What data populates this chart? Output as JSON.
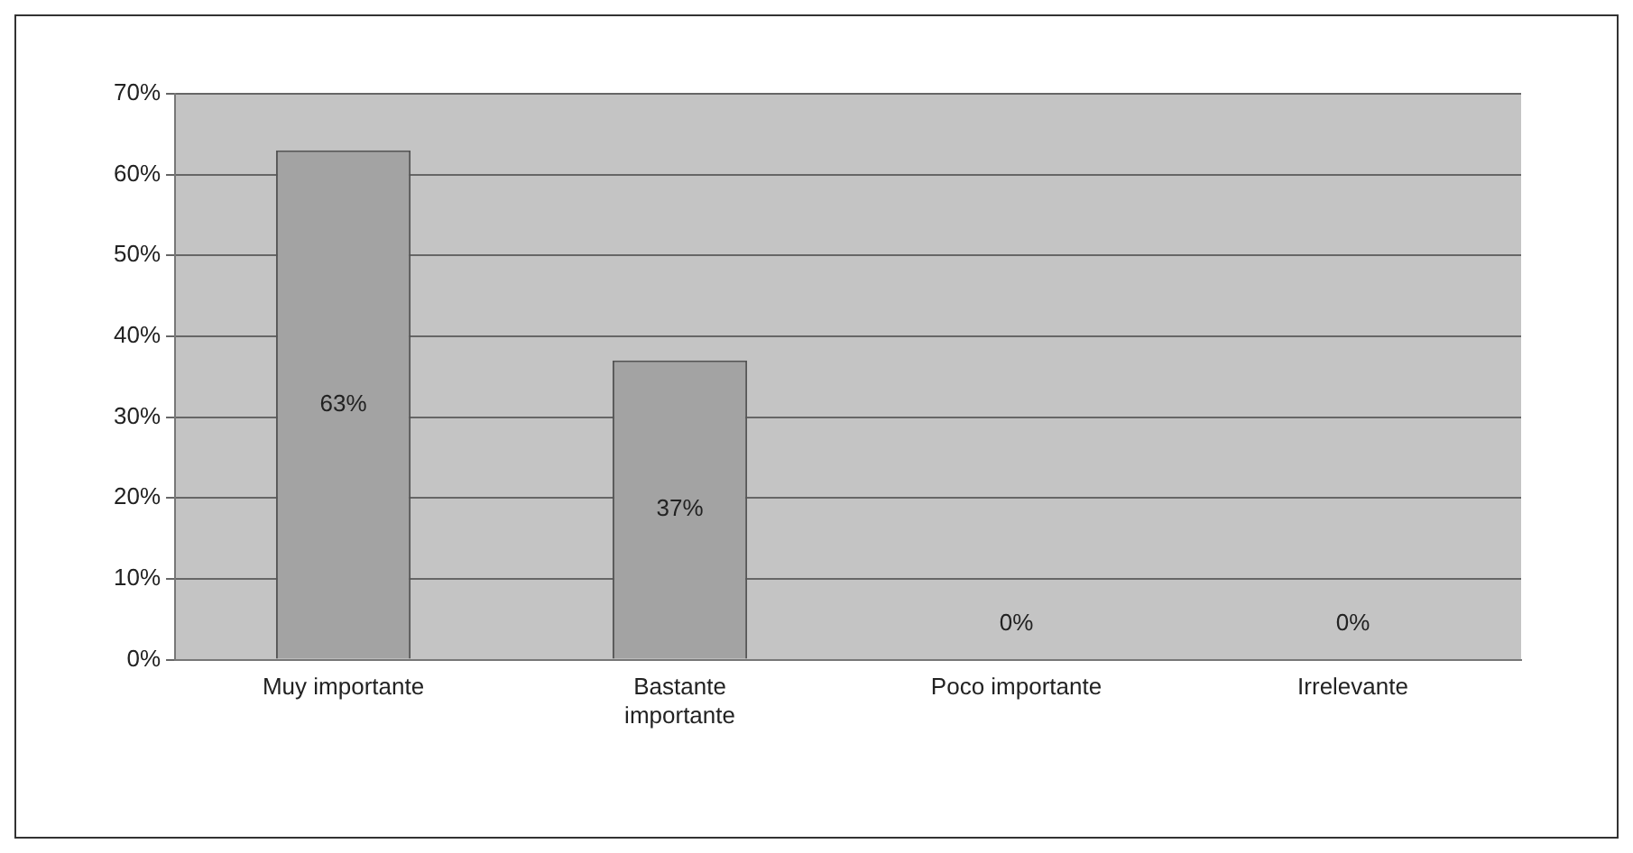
{
  "chart_data": {
    "type": "bar",
    "categories": [
      "Muy importante",
      "Bastante importante",
      "Poco importante",
      "Irrelevante"
    ],
    "values": [
      63,
      37,
      0,
      0
    ],
    "color": "#a3a3a3",
    "value_labels": [
      "63%",
      "37%",
      "0%",
      "0%"
    ],
    "ylim": [
      0,
      70
    ],
    "yticks": [
      {
        "value": 0,
        "label": "0%"
      },
      {
        "value": 10,
        "label": "10%"
      },
      {
        "value": 20,
        "label": "20%"
      },
      {
        "value": 30,
        "label": "30%"
      },
      {
        "value": 40,
        "label": "40%"
      },
      {
        "value": 50,
        "label": "50%"
      },
      {
        "value": 60,
        "label": "60%"
      },
      {
        "value": 70,
        "label": "70%"
      }
    ],
    "grid": "y",
    "legend": false
  }
}
